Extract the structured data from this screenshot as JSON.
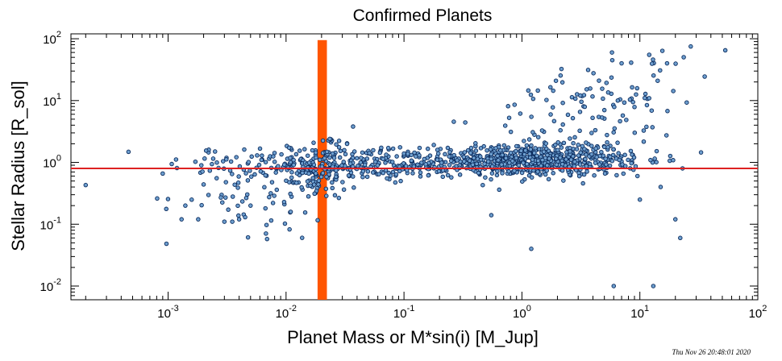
{
  "chart_data": {
    "type": "scatter",
    "title": "Confirmed Planets",
    "xlabel": "Planet Mass or M*sin(i) [M_Jup]",
    "ylabel": "Stellar Radius [R_sol]",
    "x_scale": "log",
    "y_scale": "log",
    "xlim": [
      0.00015,
      100
    ],
    "ylim": [
      0.006,
      120
    ],
    "x_tick_labels": [
      {
        "value": 0.001,
        "base": "10",
        "exp": "-3"
      },
      {
        "value": 0.01,
        "base": "10",
        "exp": "-2"
      },
      {
        "value": 0.1,
        "base": "10",
        "exp": "-1"
      },
      {
        "value": 1,
        "base": "10",
        "exp": "0"
      },
      {
        "value": 10,
        "base": "10",
        "exp": "1"
      },
      {
        "value": 100,
        "base": "10",
        "exp": "2"
      }
    ],
    "y_tick_labels": [
      {
        "value": 0.01,
        "base": "10",
        "exp": "-2"
      },
      {
        "value": 0.1,
        "base": "10",
        "exp": "-1"
      },
      {
        "value": 1,
        "base": "10",
        "exp": "0"
      },
      {
        "value": 10,
        "base": "10",
        "exp": "1"
      },
      {
        "value": 100,
        "base": "10",
        "exp": "2"
      }
    ],
    "reference_line": {
      "y": 0.8,
      "color": "#dd2222"
    },
    "highlight_band": {
      "x_range": [
        0.0185,
        0.0222
      ],
      "y_range": [
        0.006,
        95
      ],
      "color": "#ff5500"
    },
    "point_style": {
      "fill": "#6e9fcf",
      "stroke": "#0a2a5c"
    },
    "clusters": [
      {
        "center": [
          0.012,
          0.95
        ],
        "spread": [
          0.55,
          0.17
        ],
        "count": 140
      },
      {
        "center": [
          0.021,
          0.9
        ],
        "spread": [
          0.12,
          0.28
        ],
        "count": 70
      },
      {
        "center": [
          0.045,
          0.9
        ],
        "spread": [
          0.35,
          0.12
        ],
        "count": 120
      },
      {
        "center": [
          0.2,
          0.95
        ],
        "spread": [
          0.4,
          0.12
        ],
        "count": 130
      },
      {
        "center": [
          1.0,
          1.05
        ],
        "spread": [
          0.38,
          0.12
        ],
        "count": 420
      },
      {
        "center": [
          3.0,
          1.15
        ],
        "spread": [
          0.35,
          0.15
        ],
        "count": 160
      },
      {
        "center": [
          3.5,
          5.0
        ],
        "spread": [
          0.42,
          0.3
        ],
        "count": 75
      },
      {
        "center": [
          8.0,
          20.0
        ],
        "spread": [
          0.4,
          0.3
        ],
        "count": 40
      },
      {
        "center": [
          0.005,
          0.25
        ],
        "spread": [
          0.35,
          0.3
        ],
        "count": 40
      },
      {
        "center": [
          0.012,
          0.45
        ],
        "spread": [
          0.3,
          0.2
        ],
        "count": 35
      }
    ],
    "points": [
      [
        0.0002,
        0.43
      ],
      [
        0.0009,
        0.66
      ],
      [
        0.0013,
        0.12
      ],
      [
        0.0014,
        0.2
      ],
      [
        0.0018,
        0.12
      ],
      [
        0.002,
        0.44
      ],
      [
        0.0025,
        1.5
      ],
      [
        0.0021,
        1.55
      ],
      [
        0.003,
        0.11
      ],
      [
        0.0028,
        0.27
      ],
      [
        0.0035,
        0.11
      ],
      [
        0.004,
        0.12
      ],
      [
        0.005,
        0.2
      ],
      [
        0.0045,
        0.13
      ],
      [
        0.037,
        3.8
      ],
      [
        0.55,
        0.14
      ],
      [
        1.2,
        0.04
      ],
      [
        6.0,
        0.01
      ],
      [
        13.0,
        0.01
      ],
      [
        20.0,
        0.12
      ],
      [
        22.0,
        0.06
      ],
      [
        53.0,
        65.0
      ],
      [
        27.0,
        75.0
      ],
      [
        33.0,
        1.45
      ],
      [
        23.0,
        0.8
      ],
      [
        15.0,
        0.4
      ],
      [
        10.0,
        0.25
      ],
      [
        11.0,
        11.0
      ],
      [
        4.5,
        21.0
      ],
      [
        5.0,
        7.0
      ],
      [
        6.5,
        10.0
      ],
      [
        12.0,
        55.0
      ],
      [
        7.0,
        40.0
      ],
      [
        17.0,
        40.0
      ],
      [
        5.8,
        60.0
      ]
    ]
  },
  "timestamp": "Thu Nov 26 20:48:01 2020"
}
